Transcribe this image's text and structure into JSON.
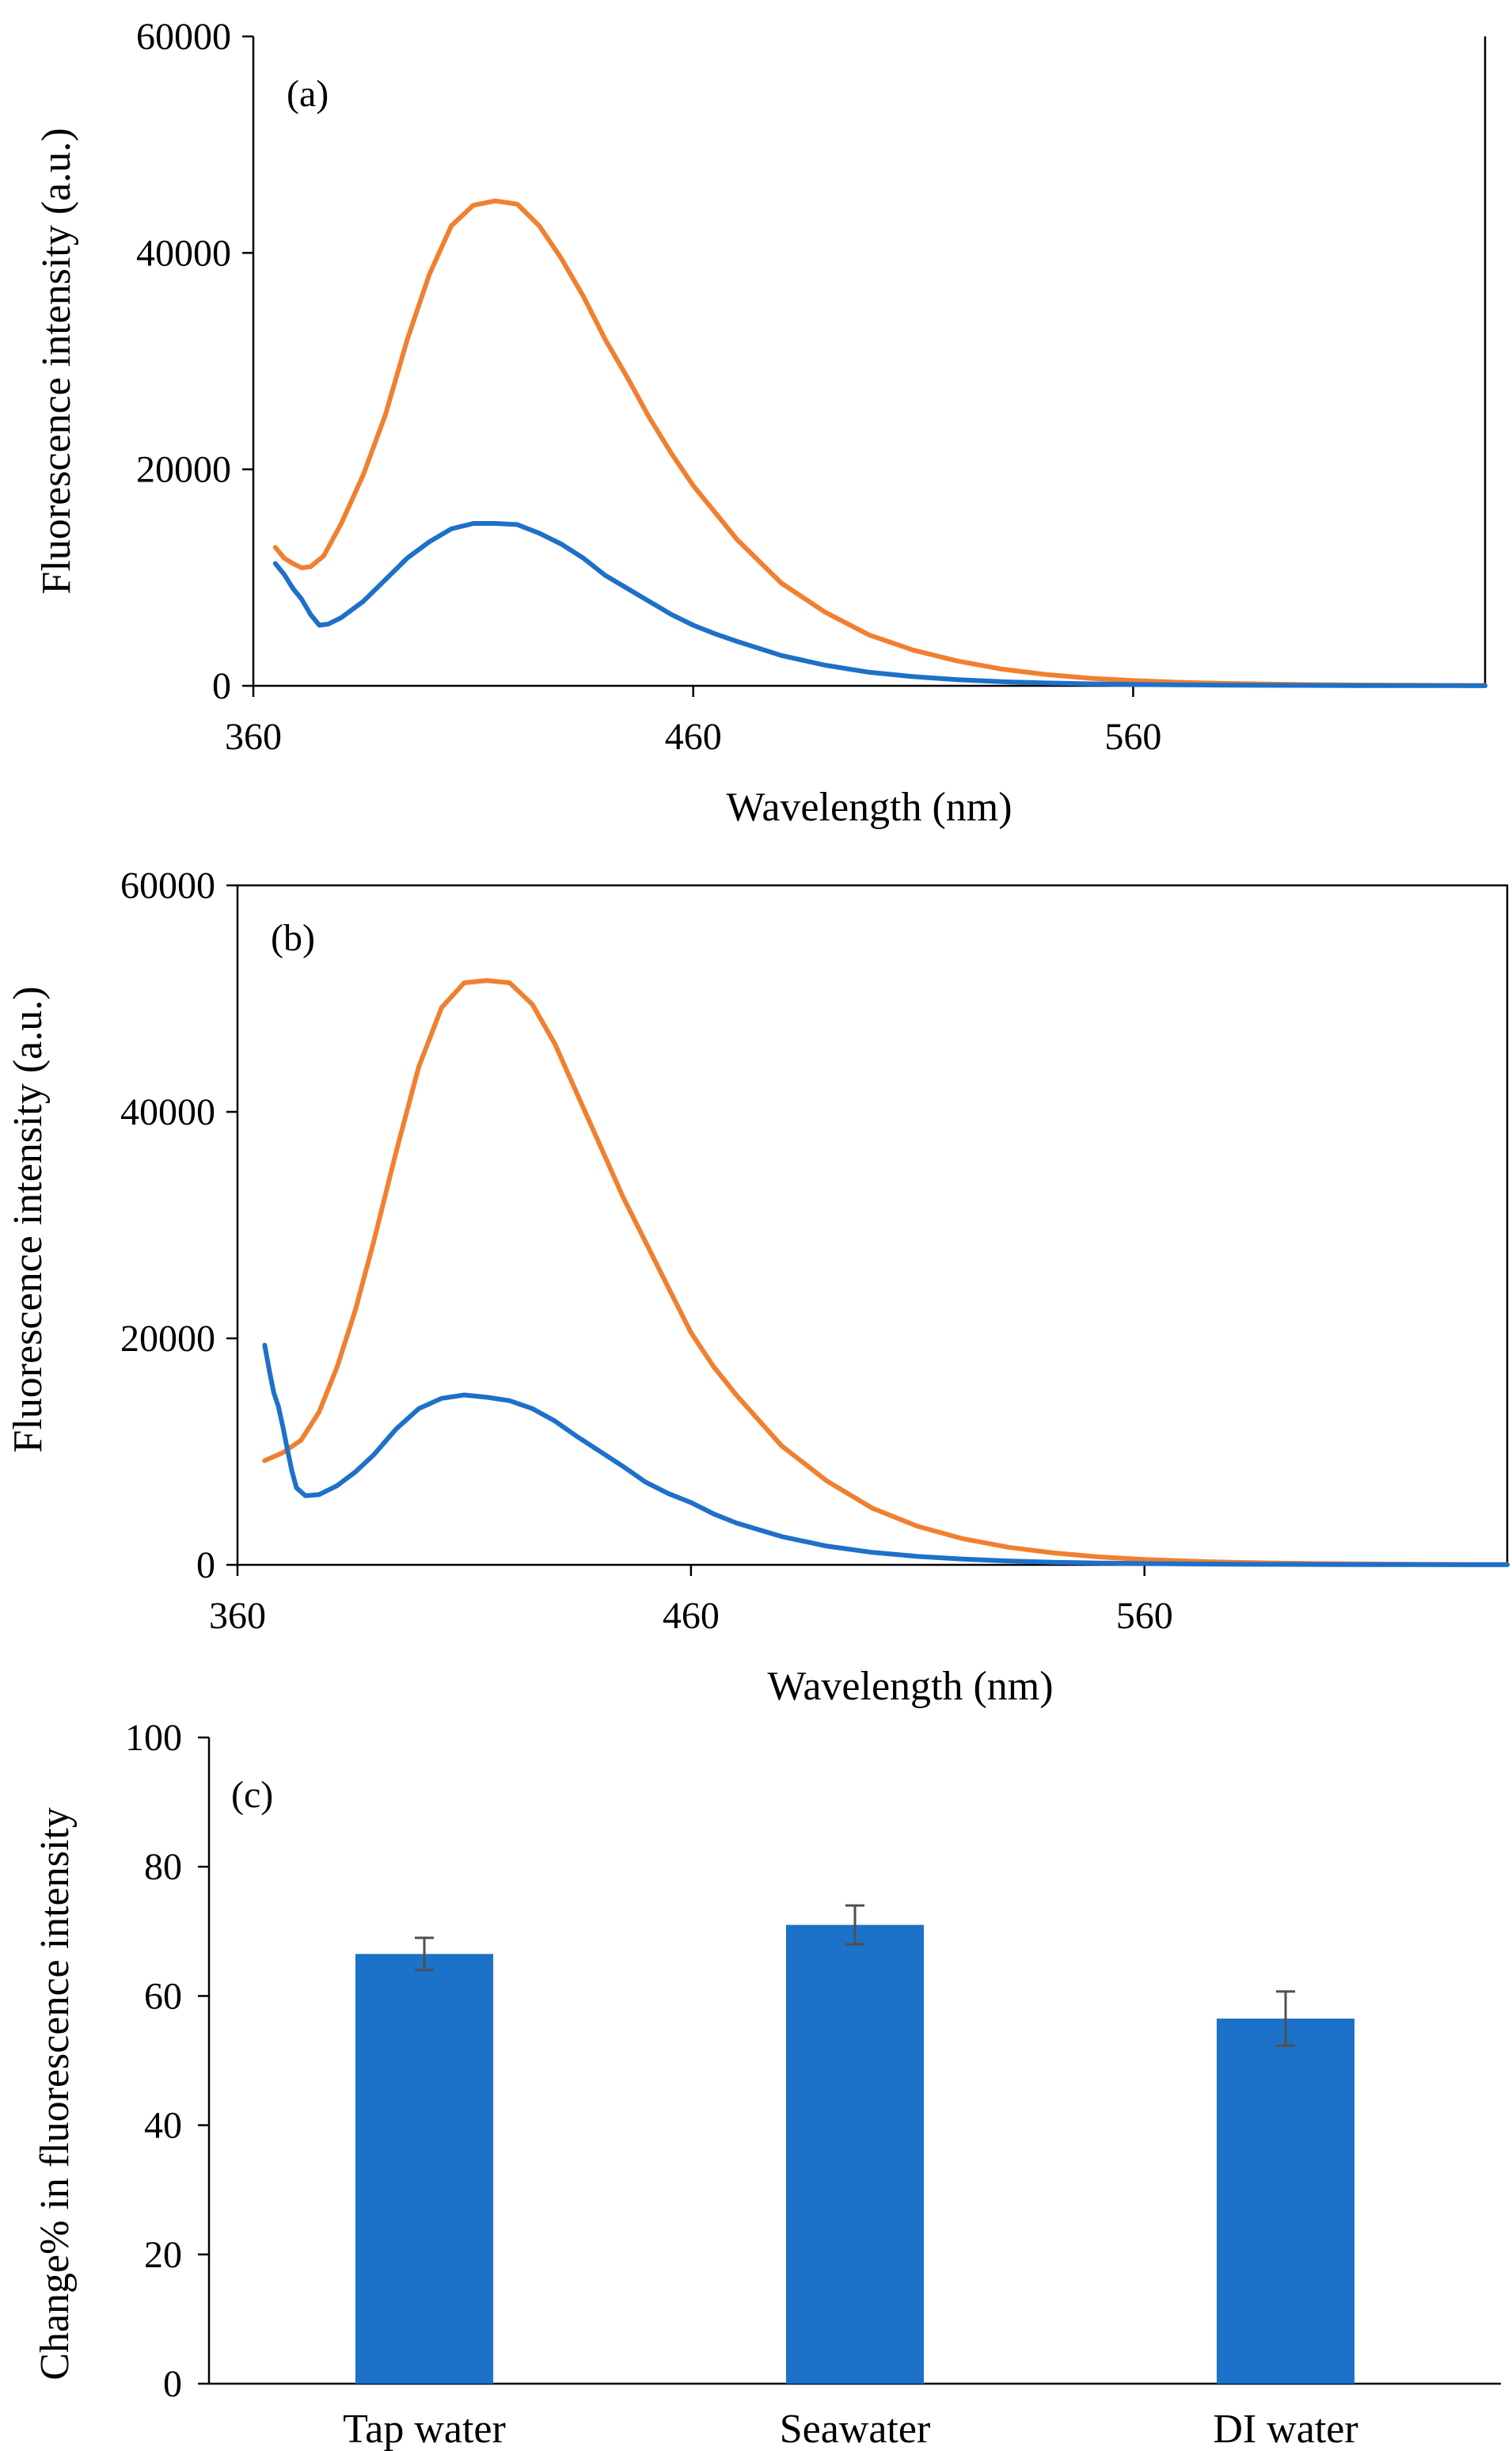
{
  "chart_data": [
    {
      "id": "a",
      "type": "line",
      "panel_label": "(a)",
      "xlabel": "Wavelength (nm)",
      "ylabel": "Fluorescence intensity (a.u.)",
      "xlim": [
        360,
        640
      ],
      "ylim": [
        0,
        60000
      ],
      "xticks": [
        360,
        460,
        560
      ],
      "yticks": [
        0,
        20000,
        40000,
        60000
      ],
      "box": "right-top-open",
      "series": [
        {
          "name": "orange",
          "color": "#f08030",
          "x": [
            365,
            367,
            369,
            371,
            373,
            376,
            380,
            385,
            390,
            395,
            400,
            405,
            410,
            415,
            420,
            425,
            430,
            435,
            440,
            445,
            450,
            455,
            460,
            465,
            470,
            480,
            490,
            500,
            510,
            520,
            530,
            540,
            550,
            560,
            570,
            580,
            590,
            600,
            610,
            620,
            630,
            640
          ],
          "y": [
            12800,
            11800,
            11300,
            10900,
            11000,
            12000,
            15000,
            19500,
            25000,
            32000,
            38000,
            42500,
            44400,
            44800,
            44500,
            42500,
            39500,
            36000,
            32000,
            28500,
            24800,
            21500,
            18500,
            16000,
            13500,
            9500,
            6800,
            4700,
            3300,
            2300,
            1550,
            1050,
            700,
            480,
            330,
            230,
            160,
            110,
            80,
            55,
            40,
            30
          ]
        },
        {
          "name": "blue",
          "color": "#1e70c8",
          "x": [
            365,
            367,
            369,
            371,
            373,
            375,
            377,
            380,
            385,
            390,
            395,
            400,
            405,
            410,
            415,
            420,
            425,
            430,
            435,
            440,
            445,
            450,
            455,
            460,
            465,
            470,
            480,
            490,
            500,
            510,
            520,
            530,
            540,
            550,
            560,
            570,
            580,
            590,
            600,
            610,
            620,
            630,
            640
          ],
          "y": [
            11300,
            10300,
            9000,
            8000,
            6600,
            5600,
            5700,
            6300,
            7800,
            9800,
            11800,
            13300,
            14500,
            15000,
            15000,
            14900,
            14100,
            13100,
            11800,
            10200,
            9000,
            7800,
            6600,
            5600,
            4800,
            4100,
            2800,
            1900,
            1250,
            850,
            560,
            380,
            260,
            180,
            130,
            90,
            65,
            45,
            35,
            25,
            20,
            15,
            10
          ]
        }
      ]
    },
    {
      "id": "b",
      "type": "line",
      "panel_label": "(b)",
      "xlabel": "Wavelength (nm)",
      "ylabel": "Fluorescence intensity (a.u.)",
      "xlim": [
        360,
        640
      ],
      "ylim": [
        0,
        60000
      ],
      "xticks": [
        360,
        460,
        560
      ],
      "yticks": [
        0,
        20000,
        40000,
        60000
      ],
      "box": "closed",
      "series": [
        {
          "name": "orange",
          "color": "#f08030",
          "x": [
            366,
            370,
            374,
            378,
            382,
            386,
            390,
            395,
            400,
            405,
            410,
            415,
            420,
            425,
            430,
            435,
            440,
            445,
            450,
            455,
            460,
            465,
            470,
            480,
            490,
            500,
            510,
            520,
            530,
            540,
            550,
            560,
            570,
            580,
            590,
            600,
            610,
            620,
            630,
            640
          ],
          "y": [
            9200,
            9900,
            11000,
            13500,
            17500,
            22500,
            28500,
            36500,
            44000,
            49200,
            51400,
            51600,
            51400,
            49500,
            46000,
            41500,
            37000,
            32500,
            28500,
            24500,
            20500,
            17500,
            15000,
            10500,
            7400,
            5000,
            3400,
            2300,
            1550,
            1050,
            700,
            470,
            320,
            220,
            150,
            105,
            75,
            50,
            35,
            25
          ]
        },
        {
          "name": "blue",
          "color": "#1e70c8",
          "x": [
            366,
            367,
            368,
            369,
            370,
            371,
            372,
            373,
            375,
            378,
            382,
            386,
            390,
            395,
            400,
            405,
            410,
            415,
            420,
            425,
            430,
            435,
            440,
            445,
            450,
            455,
            460,
            465,
            470,
            480,
            490,
            500,
            510,
            520,
            530,
            540,
            550,
            560,
            570,
            580,
            590,
            600,
            610,
            620,
            630,
            640
          ],
          "y": [
            19400,
            17200,
            15200,
            14000,
            12200,
            10200,
            8300,
            6800,
            6100,
            6200,
            7000,
            8200,
            9700,
            12000,
            13800,
            14700,
            15000,
            14800,
            14500,
            13800,
            12700,
            11300,
            10000,
            8700,
            7300,
            6300,
            5500,
            4500,
            3700,
            2500,
            1650,
            1100,
            740,
            500,
            340,
            230,
            160,
            110,
            75,
            55,
            40,
            30,
            20,
            15,
            10,
            8
          ]
        }
      ]
    },
    {
      "id": "c",
      "type": "bar",
      "panel_label": "(c)",
      "xlabel": "",
      "ylabel": "Change% in fluorescence intensity",
      "categories": [
        "Tap water",
        "Seawater",
        "DI water"
      ],
      "values": [
        66.5,
        71,
        56.5
      ],
      "errors": [
        2.5,
        3,
        4.2
      ],
      "bar_color": "#1c72c9",
      "error_color": "#505050",
      "ylim": [
        0,
        100
      ],
      "yticks": [
        0,
        20,
        40,
        60,
        80,
        100
      ]
    }
  ]
}
